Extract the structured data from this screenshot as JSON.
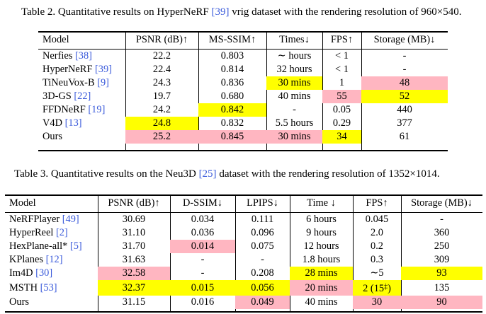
{
  "table2": {
    "caption_pre": "Table 2. Quantitative results on HyperNeRF ",
    "caption_ref": "[39]",
    "caption_post": " vrig dataset with the rendering resolution of 960×540.",
    "headers": [
      "Model",
      "PSNR (dB)↑",
      "MS-SSIM↑",
      "Times↓",
      "FPS↑",
      "Storage (MB)↓"
    ],
    "rows": [
      {
        "model": "Nerfies ",
        "ref": "[38]",
        "cells": [
          "22.2",
          "0.803",
          "∼ hours",
          "< 1",
          "-"
        ]
      },
      {
        "model": "HyperNeRF ",
        "ref": "[39]",
        "cells": [
          "22.4",
          "0.814",
          "32 hours",
          "< 1",
          "-"
        ]
      },
      {
        "model": "TiNeuVox-B ",
        "ref": "[9]",
        "cells": [
          "24.3",
          "0.836",
          "30 mins",
          "1",
          "48"
        ]
      },
      {
        "model": "3D-GS ",
        "ref": "[22]",
        "cells": [
          "19.7",
          "0.680",
          "40 mins",
          "55",
          "52"
        ]
      },
      {
        "model": "FFDNeRF ",
        "ref": "[19]",
        "cells": [
          "24.2",
          "0.842",
          "-",
          "0.05",
          "440"
        ]
      },
      {
        "model": "V4D ",
        "ref": "[13]",
        "cells": [
          "24.8",
          "0.832",
          "5.5 hours",
          "0.29",
          "377"
        ]
      },
      {
        "model": "Ours",
        "ref": "",
        "cells": [
          "25.2",
          "0.845",
          "30 mins",
          "34",
          "61"
        ]
      }
    ]
  },
  "table3": {
    "caption_pre": "Table 3. Quantitative results on the Neu3D ",
    "caption_ref": "[25]",
    "caption_post": " dataset with the rendering resolution of 1352×1014.",
    "headers": [
      "Model",
      "PSNR (dB)↑",
      "D-SSIM↓",
      "LPIPS↓",
      "Time ↓",
      "FPS↑",
      "Storage (MB)↓"
    ],
    "rows": [
      {
        "model": "NeRFPlayer ",
        "ref": "[49]",
        "cells": [
          "30.69",
          "0.034",
          "0.111",
          "6 hours",
          "0.045",
          "-"
        ]
      },
      {
        "model": "HyperReel ",
        "ref": "[2]",
        "cells": [
          "31.10",
          "0.036",
          "0.096",
          "9 hours",
          "2.0",
          "360"
        ]
      },
      {
        "model": "HexPlane-all* ",
        "ref": "[5]",
        "cells": [
          "31.70",
          "0.014",
          "0.075",
          "12 hours",
          "0.2",
          "250"
        ]
      },
      {
        "model": "KPlanes ",
        "ref": "[12]",
        "cells": [
          "31.63",
          "-",
          "-",
          "1.8 hours",
          "0.3",
          "309"
        ]
      },
      {
        "model": "Im4D ",
        "ref": "[30]",
        "cells": [
          "32.58",
          "-",
          "0.208",
          "28 mins",
          "∼5",
          "93"
        ]
      },
      {
        "model": "MSTH ",
        "ref": "[53]",
        "cells": [
          "32.37",
          "0.015",
          "0.056",
          "20 mins",
          "2 (15",
          "135"
        ]
      },
      {
        "model": "Ours",
        "ref": "",
        "cells": [
          "31.15",
          "0.016",
          "0.049",
          "40 mins",
          "30",
          "90"
        ]
      }
    ],
    "msth_fps_sup": "‡",
    "msth_fps_close": ")"
  },
  "highlight_colors": {
    "best": "#ffb6c1",
    "second": "#ffff00"
  }
}
